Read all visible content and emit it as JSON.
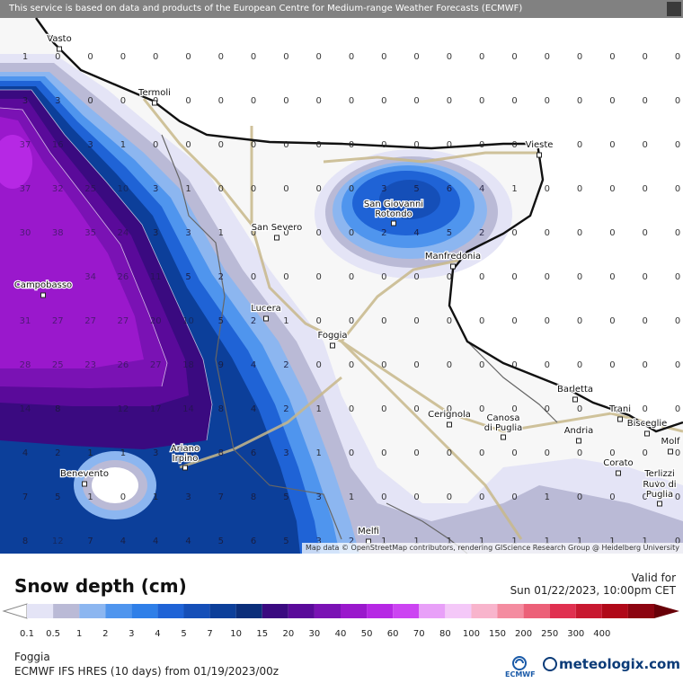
{
  "header": {
    "notice": "This service is based on data and products of the European Centre for Medium-range Weather Forecasts (ECMWF)"
  },
  "map": {
    "attribution": "Map data © OpenStreetMap contributors, rendering GIScience Research Group @ Heidelberg University",
    "cities": [
      "Vasto",
      "Termoli",
      "Vieste",
      "San Severo",
      "San Giovanni Rotondo",
      "Manfredonia",
      "Campobasso",
      "Lucera",
      "Foggia",
      "Barletta",
      "Trani",
      "Bisceglie",
      "Molf",
      "Cerignola",
      "Canosa di Puglia",
      "Andria",
      "Benevento",
      "Ariano Irpino",
      "Corato",
      "Terlizzi",
      "Ruvo di Puglia",
      "Melfi"
    ],
    "snow_values": [
      [
        "1",
        "0",
        "0",
        "0",
        "0",
        "0",
        "0",
        "0",
        "0",
        "0",
        "0",
        "0",
        "0",
        "0",
        "0",
        "0",
        "0",
        "0",
        "0",
        "0",
        "0",
        "0"
      ],
      [
        "3",
        "3",
        "0",
        "0",
        "0",
        "0",
        "0",
        "0",
        "0",
        "0",
        "0",
        "0",
        "0",
        "0",
        "0",
        "0",
        "0",
        "0",
        "0",
        "0",
        "0",
        "0"
      ],
      [
        "37",
        "16",
        "3",
        "1",
        "0",
        "0",
        "0",
        "0",
        "0",
        "0",
        "0",
        "0",
        "0",
        "0",
        "0",
        "0",
        "0",
        "0",
        "0",
        "0",
        "0",
        "0"
      ],
      [
        "37",
        "32",
        "25",
        "10",
        "3",
        "1",
        "0",
        "0",
        "0",
        "0",
        "0",
        "3",
        "5",
        "6",
        "4",
        "1",
        "0",
        "0",
        "0",
        "0",
        "0",
        "0"
      ],
      [
        "30",
        "38",
        "35",
        "24",
        "3",
        "3",
        "1",
        "0",
        "0",
        "0",
        "0",
        "2",
        "4",
        "5",
        "2",
        "0",
        "0",
        "0",
        "0",
        "0",
        "0",
        "0"
      ],
      [
        "",
        "",
        "34",
        "26",
        "11",
        "5",
        "2",
        "0",
        "0",
        "0",
        "0",
        "0",
        "0",
        "0",
        "0",
        "0",
        "0",
        "0",
        "0",
        "0",
        "0",
        "0"
      ],
      [
        "31",
        "27",
        "27",
        "27",
        "20",
        "10",
        "5",
        "2",
        "1",
        "0",
        "0",
        "0",
        "0",
        "0",
        "0",
        "0",
        "0",
        "0",
        "0",
        "0",
        "0",
        "0"
      ],
      [
        "28",
        "25",
        "23",
        "26",
        "27",
        "18",
        "9",
        "4",
        "2",
        "0",
        "0",
        "0",
        "0",
        "0",
        "0",
        "0",
        "0",
        "0",
        "0",
        "0",
        "0",
        "0"
      ],
      [
        "14",
        "8",
        "",
        "12",
        "17",
        "14",
        "8",
        "4",
        "2",
        "1",
        "0",
        "0",
        "0",
        "0",
        "0",
        "0",
        "0",
        "0",
        "0",
        "0",
        "0",
        "0"
      ],
      [
        "4",
        "2",
        "1",
        "1",
        "3",
        "6",
        "8",
        "6",
        "3",
        "1",
        "0",
        "0",
        "0",
        "0",
        "0",
        "0",
        "0",
        "0",
        "0",
        "0",
        "0",
        "0"
      ],
      [
        "7",
        "5",
        "1",
        "0",
        "1",
        "3",
        "7",
        "8",
        "5",
        "3",
        "1",
        "0",
        "0",
        "0",
        "0",
        "0",
        "1",
        "0",
        "0",
        "0",
        "0",
        "0"
      ],
      [
        "8",
        "12",
        "7",
        "4",
        "4",
        "4",
        "5",
        "6",
        "5",
        "3",
        "2",
        "1",
        "1",
        "1",
        "1",
        "1",
        "1",
        "1",
        "1",
        "1",
        "0",
        "0"
      ]
    ]
  },
  "legend": {
    "title": "Snow depth (cm)",
    "valid_label": "Valid for",
    "valid_time": "Sun 01/22/2023, 10:00pm CET",
    "ticks": [
      "0.1",
      "0.5",
      "1",
      "2",
      "3",
      "4",
      "5",
      "7",
      "10",
      "15",
      "20",
      "30",
      "40",
      "50",
      "60",
      "70",
      "80",
      "100",
      "150",
      "200",
      "250",
      "300",
      "400"
    ],
    "colors": [
      "#e4e4f6",
      "#babad6",
      "#8cb6f0",
      "#4f95ee",
      "#2f7fe8",
      "#1f63d6",
      "#154fb8",
      "#0c3f9a",
      "#0b2e7a",
      "#3a0a80",
      "#5a0a9a",
      "#7a12b4",
      "#9a18cc",
      "#b628e4",
      "#cc44f2",
      "#e8a0f8",
      "#f4c8f8",
      "#f8b4cc",
      "#f48ca0",
      "#ec6078",
      "#e03050",
      "#c81830",
      "#b00818",
      "#8c0410",
      "#680008"
    ]
  },
  "footer": {
    "location": "Foggia",
    "model": "ECMWF IFS HRES (10 days) from 01/19/2023/00z",
    "ecmwf": "ECMWF",
    "brand": "meteologix.com"
  }
}
